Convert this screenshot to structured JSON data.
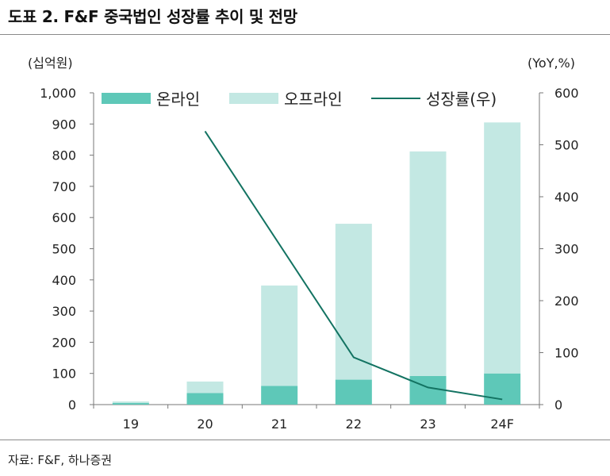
{
  "title": "도표 2. F&F 중국법인 성장률 추이 및 전망",
  "source": "자료: F&F, 하나증권",
  "colors": {
    "online": "#5ec8b8",
    "offline": "#c3e8e3",
    "growth": "#137362",
    "axis": "#777777"
  },
  "chart_data": {
    "type": "bar",
    "stacked": true,
    "categories": [
      "19",
      "20",
      "21",
      "22",
      "23",
      "24F"
    ],
    "series": [
      {
        "name": "온라인",
        "type": "bar",
        "axis": "left",
        "values": [
          5,
          37,
          60,
          80,
          92,
          100
        ]
      },
      {
        "name": "오프라인",
        "type": "bar",
        "axis": "left",
        "values": [
          5,
          37,
          322,
          500,
          720,
          805
        ]
      },
      {
        "name": "성장률(우)",
        "type": "line",
        "axis": "right",
        "values": [
          null,
          526,
          null,
          91,
          33,
          10
        ]
      }
    ],
    "ylabel": "(십억원)",
    "y2label": "(YoY,%)",
    "ylim": [
      0,
      1000
    ],
    "y2lim": [
      0,
      600
    ],
    "yticks": [
      "0",
      "100",
      "200",
      "300",
      "400",
      "500",
      "600",
      "700",
      "800",
      "900",
      "1,000"
    ],
    "y2ticks": [
      "0",
      "100",
      "200",
      "300",
      "400",
      "500",
      "600"
    ],
    "legend": "top",
    "grid": false
  }
}
